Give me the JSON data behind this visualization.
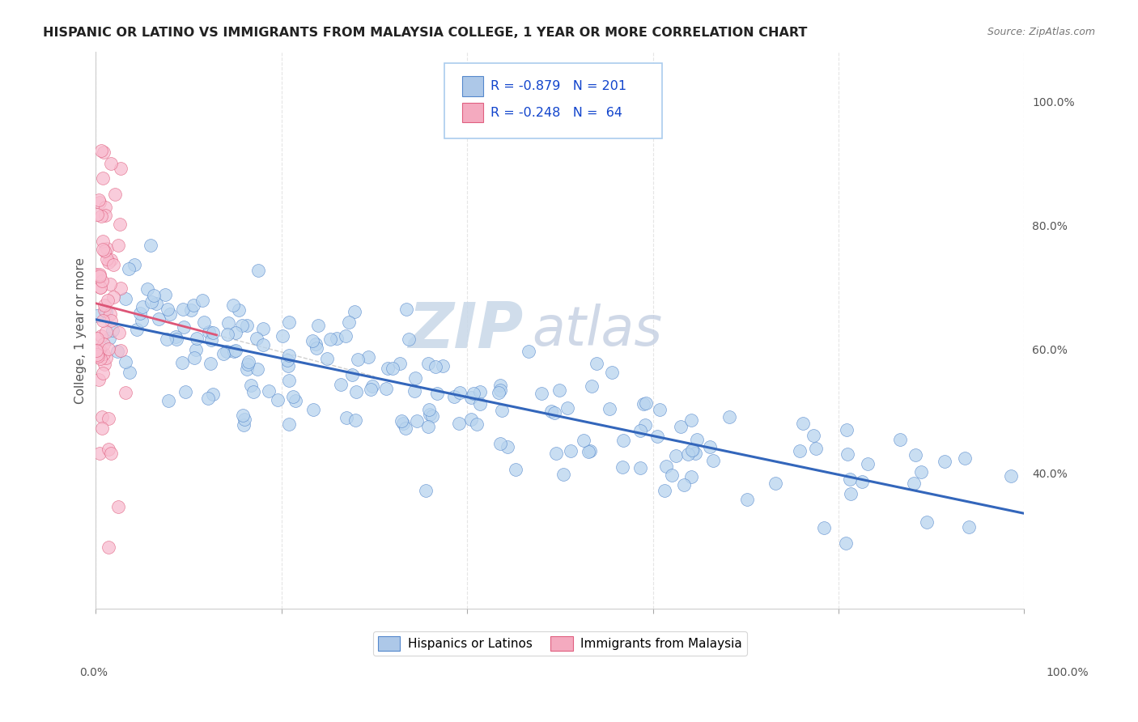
{
  "title": "HISPANIC OR LATINO VS IMMIGRANTS FROM MALAYSIA COLLEGE, 1 YEAR OR MORE CORRELATION CHART",
  "source": "Source: ZipAtlas.com",
  "ylabel": "College, 1 year or more",
  "legend1_label": "Hispanics or Latinos",
  "legend2_label": "Immigrants from Malaysia",
  "legend1_fill": "#adc8e8",
  "legend2_fill": "#f4aabf",
  "legend1_edge": "#5588cc",
  "legend2_edge": "#e06080",
  "R1": "-0.879",
  "N1": "201",
  "R2": "-0.248",
  "N2": "64",
  "scatter1_fill": "#b8d4ee",
  "scatter2_fill": "#f8bccf",
  "trend1_color": "#3366bb",
  "trend2_color": "#dd5577",
  "watermark_zip_color": "#c8d8e8",
  "watermark_atlas_color": "#c0cce0",
  "grid_color": "#cccccc",
  "background_color": "#ffffff",
  "title_fontsize": 11.5,
  "title_color": "#222222",
  "source_fontsize": 9,
  "source_color": "#777777",
  "axis_label_color": "#555555",
  "tick_label_color": "#555555",
  "legend_text_color": "#1144cc",
  "ylim_min": 0.18,
  "ylim_max": 1.08,
  "xlim_min": 0.0,
  "xlim_max": 1.0
}
